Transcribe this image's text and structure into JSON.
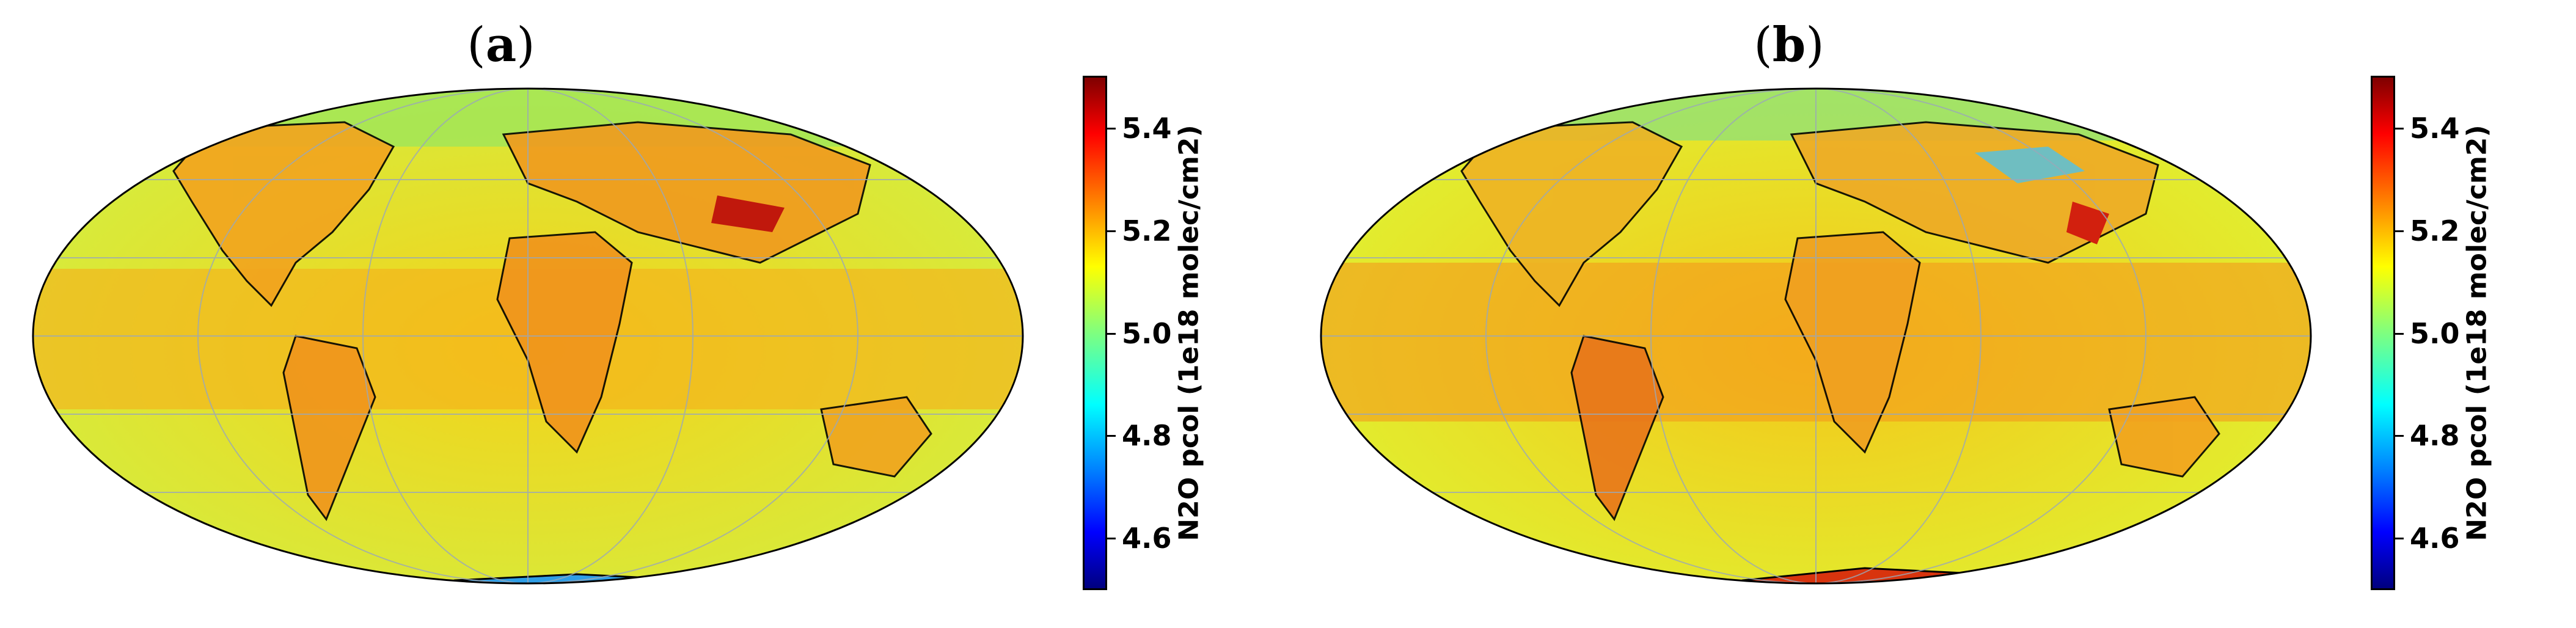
{
  "panels": [
    {
      "id": "a",
      "label_letter": "a"
    },
    {
      "id": "b",
      "label_letter": "b"
    }
  ],
  "colorbar": {
    "label": "N2O pcol (1e18 molec/cm2)",
    "range": [
      4.5,
      5.5
    ],
    "colormap": "jet",
    "ticks": [
      "4.6",
      "4.8",
      "5.0",
      "5.2",
      "5.4"
    ]
  },
  "map": {
    "projection": "mollweide",
    "grid": true,
    "background_color": "#f5e21e",
    "tropical_band_color": "#f7a41c"
  }
}
